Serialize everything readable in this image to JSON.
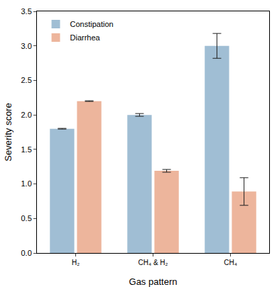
{
  "chart_data": {
    "type": "bar",
    "x_label": "Gas pattern",
    "y_label": "Severity score",
    "categories": [
      "H₂",
      "CH₄ & H₂",
      "CH₄"
    ],
    "series": [
      {
        "name": "Constipation",
        "color": "#a0bed4",
        "values": [
          1.8,
          2.0,
          3.0
        ],
        "errors": [
          0.005,
          0.02,
          0.18
        ]
      },
      {
        "name": "Diarrhea",
        "color": "#edb59c",
        "values": [
          2.2,
          1.19,
          0.89
        ],
        "errors": [
          0.005,
          0.02,
          0.2
        ]
      }
    ],
    "ylim": [
      0,
      3.5
    ],
    "yticks": [
      {
        "value": 0,
        "label": "0.0"
      },
      0.5,
      {
        "value": 1,
        "label": "1.0"
      },
      1.5,
      {
        "value": 2,
        "label": "2.0"
      },
      2.5,
      {
        "value": 3,
        "label": "3.0"
      },
      3.5
    ],
    "grid": false,
    "legend": "upper left"
  }
}
